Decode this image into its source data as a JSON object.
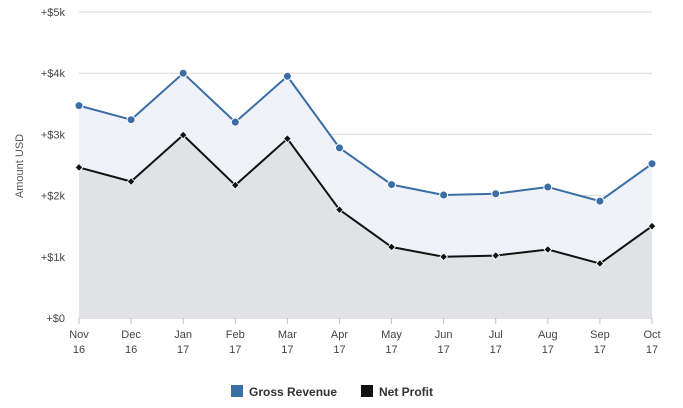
{
  "chart_data": {
    "type": "area",
    "categories": [
      [
        "Nov",
        "16"
      ],
      [
        "Dec",
        "16"
      ],
      [
        "Jan",
        "17"
      ],
      [
        "Feb",
        "17"
      ],
      [
        "Mar",
        "17"
      ],
      [
        "Apr",
        "17"
      ],
      [
        "May",
        "17"
      ],
      [
        "Jun",
        "17"
      ],
      [
        "Jul",
        "17"
      ],
      [
        "Aug",
        "17"
      ],
      [
        "Sep",
        "17"
      ],
      [
        "Oct",
        "17"
      ]
    ],
    "series": [
      {
        "name": "Gross Revenue",
        "color": "#3a6ea5",
        "fill": "#eff2f9",
        "marker": "circle",
        "values": [
          3470,
          3240,
          4000,
          3200,
          3950,
          2780,
          2180,
          2010,
          2030,
          2140,
          1910,
          2520
        ]
      },
      {
        "name": "Net Profit",
        "color": "#111111",
        "fill": "#e0e2e5",
        "marker": "diamond",
        "values": [
          2460,
          2230,
          2990,
          2170,
          2930,
          1770,
          1160,
          1000,
          1020,
          1120,
          890,
          1500
        ]
      }
    ],
    "ylabel": "Amount USD",
    "ylim": [
      0,
      5000
    ],
    "yticks": [
      {
        "value": 0,
        "label": "+$0"
      },
      {
        "value": 1000,
        "label": "+$1k"
      },
      {
        "value": 2000,
        "label": "+$2k"
      },
      {
        "value": 3000,
        "label": "+$3k"
      },
      {
        "value": 4000,
        "label": "+$4k"
      },
      {
        "value": 5000,
        "label": "+$5k"
      }
    ],
    "grid": true,
    "legend": "bottom-center"
  }
}
